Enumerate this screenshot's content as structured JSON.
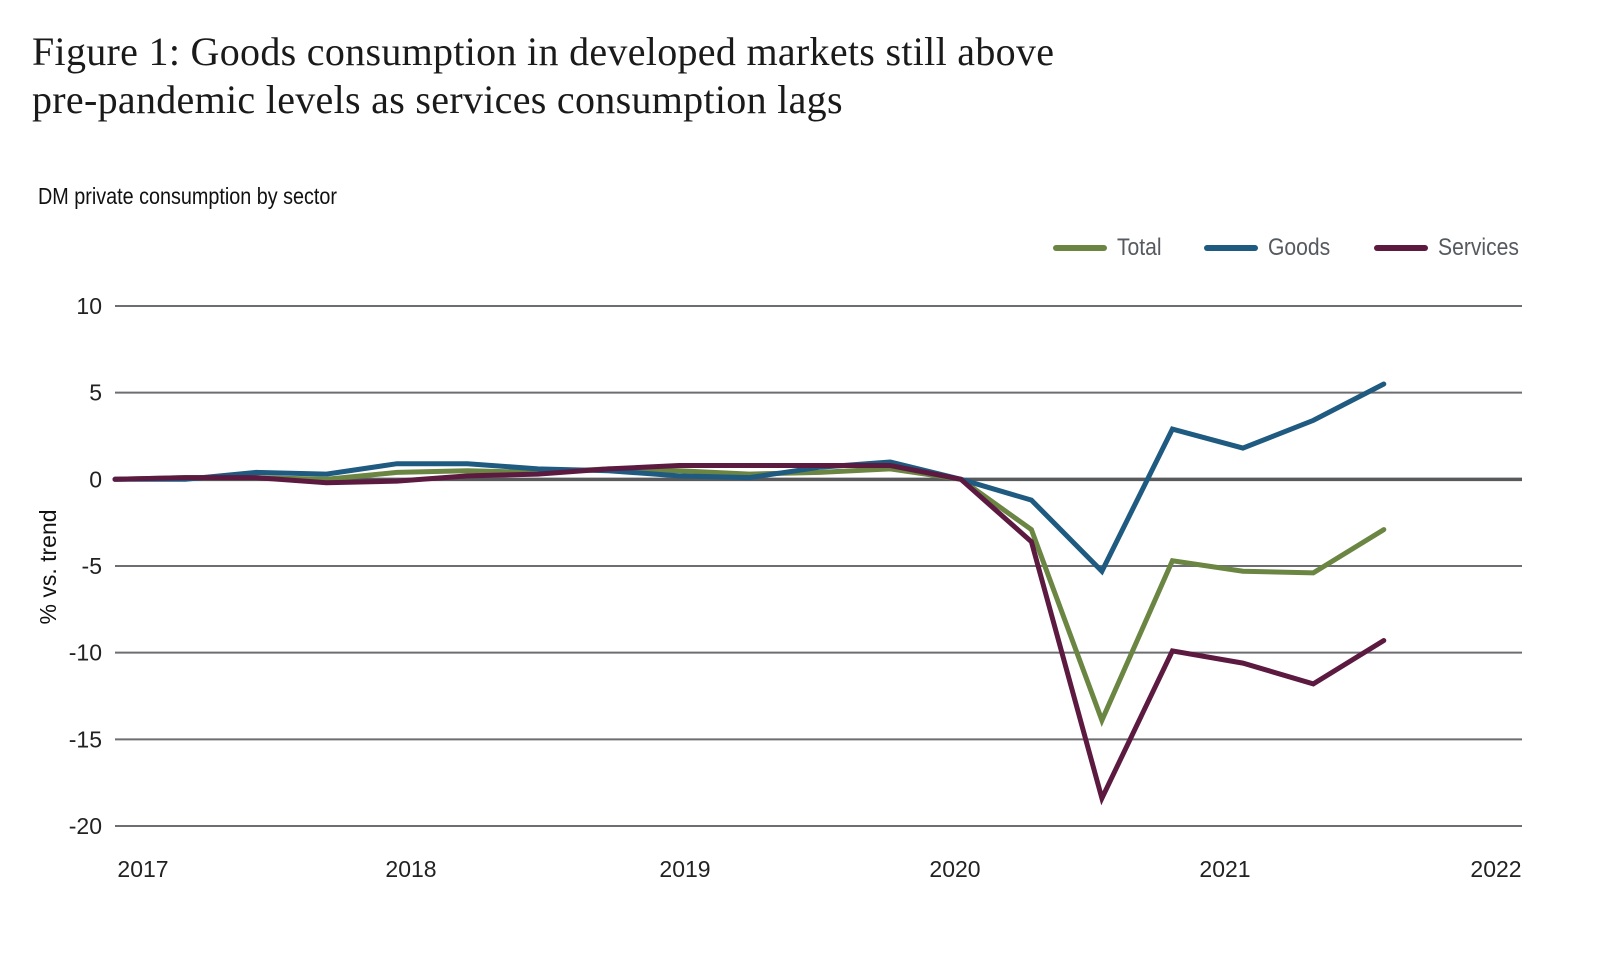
{
  "figure": {
    "title_line1": "Figure 1: Goods consumption in developed markets still above",
    "title_line2": "pre-pandemic levels as services consumption lags",
    "subtitle": "DM private consumption by sector"
  },
  "chart_data": {
    "type": "line",
    "title": "Figure 1: Goods consumption in developed markets still above pre-pandemic levels as services consumption lags",
    "subtitle": "DM private consumption by sector",
    "xlabel": "",
    "ylabel": "% vs. trend",
    "x": [
      "2017Q1",
      "2017Q2",
      "2017Q3",
      "2017Q4",
      "2018Q1",
      "2018Q2",
      "2018Q3",
      "2018Q4",
      "2019Q1",
      "2019Q2",
      "2019Q3",
      "2019Q4",
      "2020Q1",
      "2020Q2",
      "2020Q3",
      "2020Q4",
      "2021Q1",
      "2021Q2",
      "2021Q3"
    ],
    "x_ticks": [
      "2017",
      "2018",
      "2019",
      "2020",
      "2021",
      "2022"
    ],
    "xlim": [
      2017,
      2022
    ],
    "y_ticks": [
      10,
      5,
      0,
      -5,
      -10,
      -15,
      -20
    ],
    "ylim": [
      -20,
      10
    ],
    "grid": true,
    "legend_position": "top-right",
    "series": [
      {
        "name": "Total",
        "color": "#6b8543",
        "values": [
          0,
          0.1,
          0.1,
          0.0,
          0.4,
          0.5,
          0.4,
          0.6,
          0.5,
          0.3,
          0.4,
          0.6,
          0,
          -2.9,
          -13.9,
          -4.7,
          -5.3,
          -5.4,
          -2.9
        ]
      },
      {
        "name": "Goods",
        "color": "#1f5a80",
        "values": [
          0,
          0.0,
          0.4,
          0.3,
          0.9,
          0.9,
          0.6,
          0.5,
          0.2,
          0.1,
          0.7,
          1.0,
          0,
          -1.2,
          -5.3,
          2.9,
          1.8,
          3.4,
          5.5
        ]
      },
      {
        "name": "Services",
        "color": "#5c1a40",
        "values": [
          0,
          0.1,
          0.1,
          -0.2,
          -0.1,
          0.2,
          0.3,
          0.6,
          0.8,
          0.8,
          0.8,
          0.8,
          0,
          -3.6,
          -18.4,
          -9.9,
          -10.6,
          -11.8,
          -9.3
        ]
      }
    ],
    "gridline_color": "#6d6e71",
    "zero_line_color": "#58595b"
  }
}
